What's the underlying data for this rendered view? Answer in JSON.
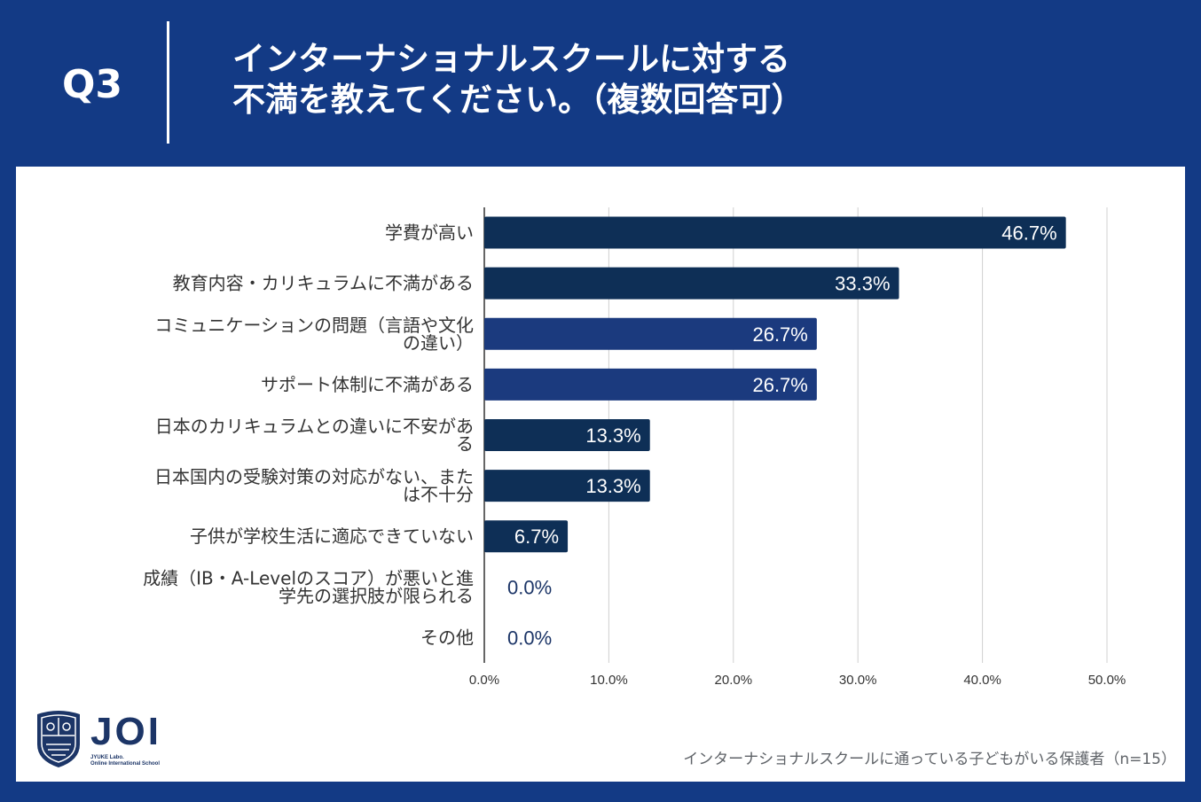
{
  "header": {
    "question": "Q3",
    "title_lines": [
      "インターナショナルスクールに対する",
      "不満を教えてください。（複数回答可）"
    ]
  },
  "colors": {
    "header_bg": "#133a85",
    "bar_dark": "#0e2f56",
    "bar_mid": "#1b3a7e",
    "grid": "#d0d0d0",
    "label": "#333333",
    "value_outside": "#1c3567"
  },
  "chart_data": {
    "type": "bar",
    "orientation": "horizontal",
    "categories": [
      [
        "学費が高い"
      ],
      [
        "教育内容・カリキュラムに不満がある"
      ],
      [
        "コミュニケーションの問題（言語や文化",
        "の違い）"
      ],
      [
        "サポート体制に不満がある"
      ],
      [
        "日本のカリキュラムとの違いに不安があ",
        "る"
      ],
      [
        "日本国内の受験対策の対応がない、また",
        "は不十分"
      ],
      [
        "子供が学校生活に適応できていない"
      ],
      [
        "成績（IB・A-Levelのスコア）が悪いと進",
        "学先の選択肢が限られる"
      ],
      [
        "その他"
      ]
    ],
    "values": [
      46.7,
      33.3,
      26.7,
      26.7,
      13.3,
      13.3,
      6.7,
      0.0,
      0.0
    ],
    "value_labels": [
      "46.7%",
      "33.3%",
      "26.7%",
      "26.7%",
      "13.3%",
      "13.3%",
      "6.7%",
      "0.0%",
      "0.0%"
    ],
    "bar_color_keys": [
      "bar_dark",
      "bar_dark",
      "bar_mid",
      "bar_mid",
      "bar_dark",
      "bar_dark",
      "bar_dark",
      "bar_dark",
      "bar_dark"
    ],
    "xlim": [
      0,
      50
    ],
    "xticks": [
      "0.0%",
      "10.0%",
      "20.0%",
      "30.0%",
      "40.0%",
      "50.0%"
    ],
    "grid": true,
    "legend": "none"
  },
  "logo": {
    "name": "JOI",
    "sub_lines": [
      "JYUKE Labo.",
      "Online International School"
    ]
  },
  "footnote": "インターナショナルスクールに通っている子どもがいる保護者（n=15）"
}
